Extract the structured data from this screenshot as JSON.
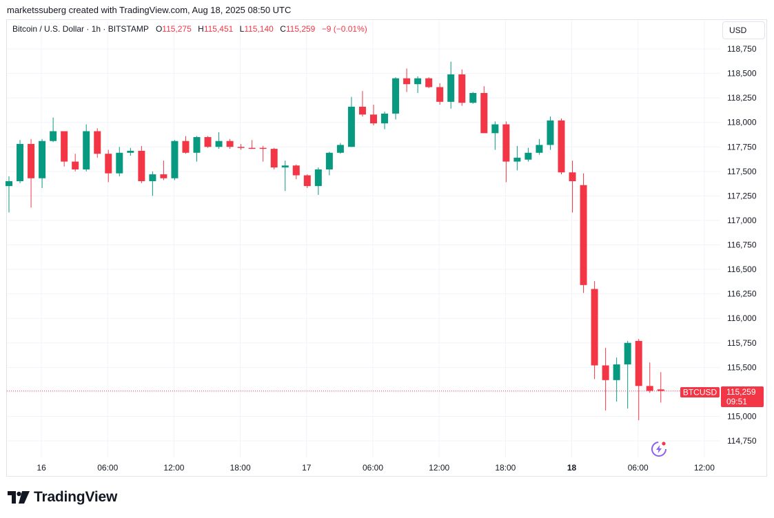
{
  "header": {
    "created_by": "marketssuberg created with TradingView.com, Aug 18, 2025 08:50 UTC"
  },
  "legend": {
    "symbol": "Bitcoin / U.S. Dollar · 1h · BITSTAMP",
    "o_label": "O",
    "o_value": "115,275",
    "h_label": "H",
    "h_value": "115,451",
    "l_label": "L",
    "l_value": "115,140",
    "c_label": "C",
    "c_value": "115,259",
    "change": "−9 (−0.01%)"
  },
  "currency_button": "USD",
  "price_tag": {
    "symbol": "BTCUSD",
    "price": "115,259",
    "countdown": "09:51"
  },
  "brand": {
    "name": "TradingView"
  },
  "colors": {
    "up": "#089981",
    "down": "#f23645",
    "grid": "#f0f3fa",
    "text": "#131722"
  },
  "chart_data": {
    "type": "candlestick",
    "interval": "1h",
    "y_ticks": [
      114750,
      115000,
      115250,
      115500,
      115750,
      116000,
      116250,
      116500,
      116750,
      117000,
      117250,
      117500,
      117750,
      118000,
      118250,
      118500,
      118750
    ],
    "y_tick_labels": [
      "114,750",
      "115,000",
      "115,250",
      "115,500",
      "115,750",
      "116,000",
      "116,250",
      "116,500",
      "116,750",
      "117,000",
      "117,250",
      "117,500",
      "117,750",
      "118,000",
      "118,250",
      "118,500",
      "118,750"
    ],
    "ylim": [
      114600,
      118900
    ],
    "x_ticks": [
      {
        "index": 3,
        "label": "16",
        "bold": false
      },
      {
        "index": 9,
        "label": "06:00",
        "bold": false
      },
      {
        "index": 15,
        "label": "12:00",
        "bold": false
      },
      {
        "index": 21,
        "label": "18:00",
        "bold": false
      },
      {
        "index": 27,
        "label": "17",
        "bold": false
      },
      {
        "index": 33,
        "label": "06:00",
        "bold": false
      },
      {
        "index": 39,
        "label": "12:00",
        "bold": false
      },
      {
        "index": 45,
        "label": "18:00",
        "bold": false
      },
      {
        "index": 51,
        "label": "18",
        "bold": true
      },
      {
        "index": 57,
        "label": "06:00",
        "bold": false
      },
      {
        "index": 63,
        "label": "12:00",
        "bold": false
      }
    ],
    "last_price": 115259,
    "candles": [
      {
        "o": 117350,
        "h": 117450,
        "l": 117080,
        "c": 117400
      },
      {
        "o": 117400,
        "h": 117820,
        "l": 117380,
        "c": 117780
      },
      {
        "o": 117780,
        "h": 117830,
        "l": 117130,
        "c": 117430
      },
      {
        "o": 117430,
        "h": 117830,
        "l": 117330,
        "c": 117810
      },
      {
        "o": 117810,
        "h": 118050,
        "l": 117800,
        "c": 117910
      },
      {
        "o": 117910,
        "h": 117910,
        "l": 117550,
        "c": 117600
      },
      {
        "o": 117600,
        "h": 117680,
        "l": 117500,
        "c": 117520
      },
      {
        "o": 117520,
        "h": 117980,
        "l": 117500,
        "c": 117910
      },
      {
        "o": 117910,
        "h": 117940,
        "l": 117640,
        "c": 117680
      },
      {
        "o": 117680,
        "h": 117720,
        "l": 117390,
        "c": 117480
      },
      {
        "o": 117480,
        "h": 117750,
        "l": 117450,
        "c": 117690
      },
      {
        "o": 117690,
        "h": 117740,
        "l": 117660,
        "c": 117710
      },
      {
        "o": 117710,
        "h": 117760,
        "l": 117380,
        "c": 117400
      },
      {
        "o": 117400,
        "h": 117500,
        "l": 117250,
        "c": 117470
      },
      {
        "o": 117470,
        "h": 117610,
        "l": 117410,
        "c": 117430
      },
      {
        "o": 117430,
        "h": 117820,
        "l": 117410,
        "c": 117810
      },
      {
        "o": 117810,
        "h": 117860,
        "l": 117680,
        "c": 117690
      },
      {
        "o": 117690,
        "h": 117860,
        "l": 117600,
        "c": 117850
      },
      {
        "o": 117850,
        "h": 117860,
        "l": 117740,
        "c": 117750
      },
      {
        "o": 117750,
        "h": 117900,
        "l": 117730,
        "c": 117810
      },
      {
        "o": 117810,
        "h": 117830,
        "l": 117730,
        "c": 117750
      },
      {
        "o": 117750,
        "h": 117780,
        "l": 117720,
        "c": 117740
      },
      {
        "o": 117740,
        "h": 117820,
        "l": 117730,
        "c": 117730
      },
      {
        "o": 117740,
        "h": 117760,
        "l": 117600,
        "c": 117730
      },
      {
        "o": 117730,
        "h": 117740,
        "l": 117520,
        "c": 117540
      },
      {
        "o": 117540,
        "h": 117610,
        "l": 117300,
        "c": 117560
      },
      {
        "o": 117560,
        "h": 117570,
        "l": 117420,
        "c": 117460
      },
      {
        "o": 117460,
        "h": 117470,
        "l": 117330,
        "c": 117350
      },
      {
        "o": 117350,
        "h": 117540,
        "l": 117260,
        "c": 117520
      },
      {
        "o": 117520,
        "h": 117700,
        "l": 117460,
        "c": 117690
      },
      {
        "o": 117690,
        "h": 117790,
        "l": 117680,
        "c": 117770
      },
      {
        "o": 117750,
        "h": 118260,
        "l": 117750,
        "c": 118160
      },
      {
        "o": 118160,
        "h": 118320,
        "l": 118060,
        "c": 118080
      },
      {
        "o": 118080,
        "h": 118180,
        "l": 117970,
        "c": 117990
      },
      {
        "o": 117990,
        "h": 118110,
        "l": 117930,
        "c": 118090
      },
      {
        "o": 118090,
        "h": 118460,
        "l": 118030,
        "c": 118450
      },
      {
        "o": 118450,
        "h": 118550,
        "l": 118310,
        "c": 118390
      },
      {
        "o": 118390,
        "h": 118470,
        "l": 118300,
        "c": 118450
      },
      {
        "o": 118450,
        "h": 118460,
        "l": 118350,
        "c": 118360
      },
      {
        "o": 118360,
        "h": 118400,
        "l": 118180,
        "c": 118210
      },
      {
        "o": 118210,
        "h": 118620,
        "l": 118140,
        "c": 118490
      },
      {
        "o": 118490,
        "h": 118540,
        "l": 118170,
        "c": 118200
      },
      {
        "o": 118200,
        "h": 118310,
        "l": 118190,
        "c": 118300
      },
      {
        "o": 118300,
        "h": 118370,
        "l": 117910,
        "c": 117890
      },
      {
        "o": 117890,
        "h": 118010,
        "l": 117720,
        "c": 117980
      },
      {
        "o": 117980,
        "h": 118010,
        "l": 117390,
        "c": 117600
      },
      {
        "o": 117600,
        "h": 117760,
        "l": 117510,
        "c": 117640
      },
      {
        "o": 117620,
        "h": 117740,
        "l": 117600,
        "c": 117690
      },
      {
        "o": 117690,
        "h": 117830,
        "l": 117670,
        "c": 117770
      },
      {
        "o": 117770,
        "h": 118060,
        "l": 117720,
        "c": 118020
      },
      {
        "o": 118020,
        "h": 118040,
        "l": 117470,
        "c": 117490
      },
      {
        "o": 117490,
        "h": 117610,
        "l": 117080,
        "c": 117400
      },
      {
        "o": 117360,
        "h": 117480,
        "l": 116260,
        "c": 116340
      },
      {
        "o": 116300,
        "h": 116380,
        "l": 115380,
        "c": 115520
      },
      {
        "o": 115520,
        "h": 115700,
        "l": 115060,
        "c": 115370
      },
      {
        "o": 115370,
        "h": 115600,
        "l": 115150,
        "c": 115530
      },
      {
        "o": 115530,
        "h": 115770,
        "l": 115080,
        "c": 115750
      },
      {
        "o": 115770,
        "h": 115790,
        "l": 114960,
        "c": 115310
      },
      {
        "o": 115310,
        "h": 115550,
        "l": 115240,
        "c": 115260
      },
      {
        "o": 115275,
        "h": 115451,
        "l": 115140,
        "c": 115259
      }
    ]
  }
}
